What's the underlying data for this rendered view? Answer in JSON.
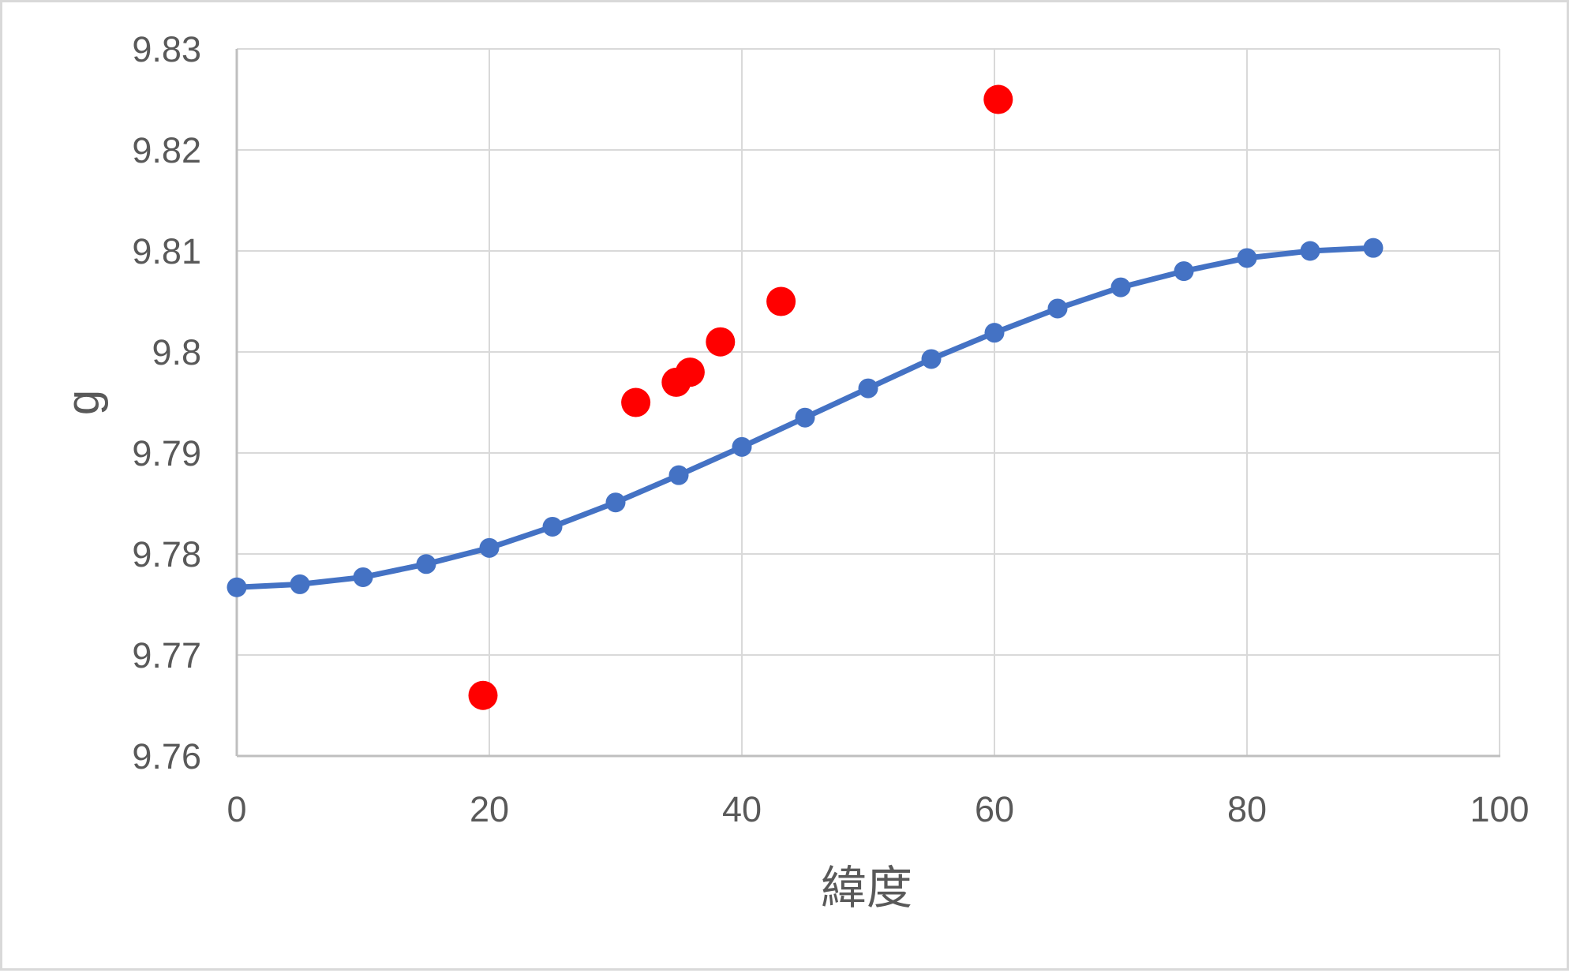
{
  "colors": {
    "series_line_blue": "#4472C4",
    "series_scatter_red": "#FF0000",
    "gridline": "#D9D9D9",
    "axis_line": "#BFBFBF",
    "text_gray": "#595959",
    "frame_border": "#D9D9D9",
    "background": "#FFFFFF"
  },
  "chart_data": {
    "type": "scatter",
    "title": "",
    "xlabel": "緯度",
    "ylabel": "g",
    "xlim": [
      0,
      100
    ],
    "ylim": [
      9.76,
      9.83
    ],
    "grid": true,
    "legend": "none",
    "x_ticks": {
      "values": [
        0,
        20,
        40,
        60,
        80,
        100
      ],
      "labels": [
        "0",
        "20",
        "40",
        "60",
        "80",
        "100"
      ]
    },
    "y_ticks": {
      "values": [
        9.76,
        9.77,
        9.78,
        9.79,
        9.8,
        9.81,
        9.82,
        9.83
      ],
      "labels": [
        "9.76",
        "9.77",
        "9.78",
        "9.79",
        "9.8",
        "9.81",
        "9.82",
        "9.83"
      ]
    },
    "series": [
      {
        "name": "gravity-model-curve",
        "type": "line-with-markers",
        "color": "#4472C4",
        "line_width": 7,
        "marker": "circle",
        "marker_radius": 12.5,
        "x": [
          0,
          5,
          10,
          15,
          20,
          25,
          30,
          35,
          40,
          45,
          50,
          55,
          60,
          65,
          70,
          75,
          80,
          85,
          90
        ],
        "y": [
          9.7767,
          9.777,
          9.7777,
          9.779,
          9.7806,
          9.7827,
          9.7851,
          9.7878,
          9.7906,
          9.7935,
          9.7964,
          9.7993,
          9.8019,
          9.8043,
          9.8064,
          9.808,
          9.8093,
          9.81,
          9.8103
        ]
      },
      {
        "name": "observed-gravity-points",
        "type": "scatter",
        "color": "#FF0000",
        "marker": "circle",
        "marker_radius": 18.5,
        "x": [
          19.5,
          31.6,
          34.8,
          35.9,
          38.3,
          43.1,
          60.3
        ],
        "y": [
          9.766,
          9.795,
          9.797,
          9.798,
          9.801,
          9.805,
          9.825
        ]
      }
    ]
  }
}
